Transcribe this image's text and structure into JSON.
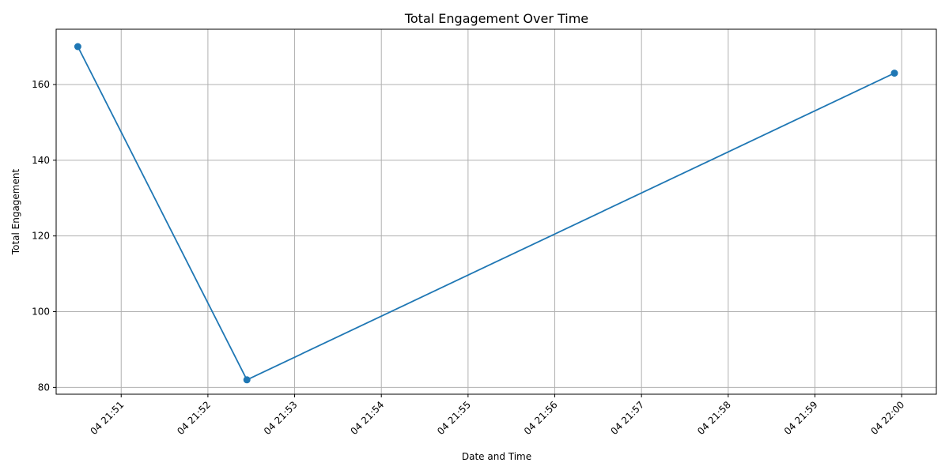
{
  "chart_data": {
    "type": "line",
    "title": "Total Engagement Over Time",
    "xlabel": "Date and Time",
    "ylabel": "Total Engagement",
    "x_tick_labels": [
      "04 21:51",
      "04 21:52",
      "04 21:53",
      "04 21:54",
      "04 21:55",
      "04 21:56",
      "04 21:57",
      "04 21:58",
      "04 21:59",
      "04 22:00"
    ],
    "y_ticks": [
      80,
      100,
      120,
      140,
      160
    ],
    "ylim": [
      78.2,
      174.6
    ],
    "xlim": [
      "04 21:50:15",
      "04 22:00:24"
    ],
    "grid": true,
    "series": [
      {
        "color": "#1f77b4",
        "marker": "circle",
        "points": [
          {
            "x": "04 21:50:30",
            "y": 170
          },
          {
            "x": "04 21:52:27",
            "y": 82
          },
          {
            "x": "04 21:59:55",
            "y": 163
          }
        ]
      }
    ]
  }
}
